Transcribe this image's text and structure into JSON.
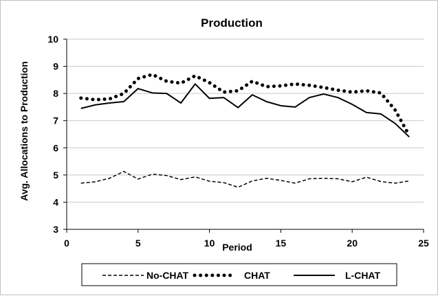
{
  "chart_data": {
    "type": "line",
    "title": "Production",
    "xlabel": "Period",
    "ylabel": "Avg. Allocations to Production",
    "xlim": [
      0,
      25
    ],
    "ylim": [
      3,
      10
    ],
    "xticks": [
      0,
      5,
      10,
      15,
      20,
      25
    ],
    "yticks": [
      3,
      4,
      5,
      6,
      7,
      8,
      9,
      10
    ],
    "grid": "horizontal",
    "legend_position": "bottom",
    "x": [
      1,
      2,
      3,
      4,
      5,
      6,
      7,
      8,
      9,
      10,
      11,
      12,
      13,
      14,
      15,
      16,
      17,
      18,
      19,
      20,
      21,
      22,
      23,
      24
    ],
    "series": [
      {
        "name": "No-CHAT",
        "style": "dashed",
        "values": [
          4.7,
          4.75,
          4.88,
          5.13,
          4.85,
          5.03,
          4.98,
          4.83,
          4.93,
          4.77,
          4.72,
          4.55,
          4.78,
          4.88,
          4.8,
          4.7,
          4.86,
          4.88,
          4.86,
          4.75,
          4.92,
          4.76,
          4.7,
          4.78
        ]
      },
      {
        "name": "CHAT",
        "style": "dotted",
        "values": [
          7.83,
          7.77,
          7.8,
          8.0,
          8.55,
          8.7,
          8.45,
          8.38,
          8.65,
          8.4,
          8.05,
          8.1,
          8.45,
          8.25,
          8.28,
          8.35,
          8.3,
          8.22,
          8.12,
          8.05,
          8.1,
          8.02,
          7.4,
          6.45
        ]
      },
      {
        "name": "L-CHAT",
        "style": "solid",
        "values": [
          7.45,
          7.58,
          7.65,
          7.7,
          8.18,
          8.02,
          8.0,
          7.65,
          8.35,
          7.82,
          7.85,
          7.48,
          7.95,
          7.7,
          7.55,
          7.5,
          7.85,
          7.98,
          7.85,
          7.6,
          7.3,
          7.25,
          6.9,
          6.4
        ]
      }
    ]
  }
}
